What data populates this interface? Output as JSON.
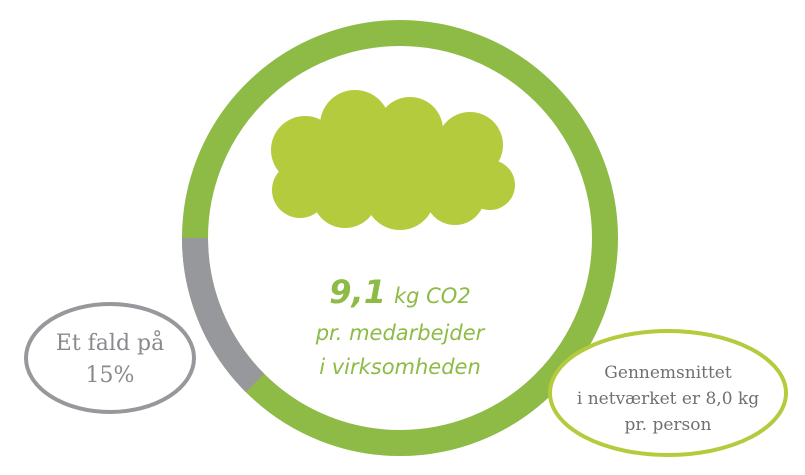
{
  "center": {
    "value": "9,1",
    "unit": "kg CO2",
    "lines": [
      "pr. medarbejder",
      "i virksomheden"
    ]
  },
  "left_callout": {
    "lines": [
      "Et fald på",
      "15%"
    ]
  },
  "right_callout": {
    "lines": [
      "Gennemsnittet",
      "i netværket er 8,0 kg",
      "pr. person"
    ]
  }
}
